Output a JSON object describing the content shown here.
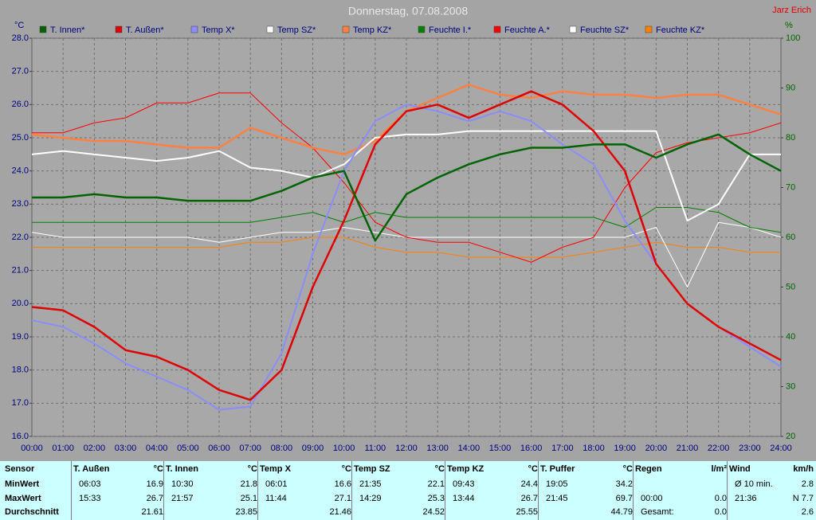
{
  "chart_data": {
    "type": "line",
    "title": "Donnerstag, 07.08.2008",
    "author": "Jarz Erich",
    "y_label": "°C",
    "y2_label": "%",
    "categories": [
      "00:00",
      "01:00",
      "02:00",
      "03:00",
      "04:00",
      "05:00",
      "06:00",
      "07:00",
      "08:00",
      "09:00",
      "10:00",
      "11:00",
      "12:00",
      "13:00",
      "14:00",
      "15:00",
      "16:00",
      "17:00",
      "18:00",
      "19:00",
      "20:00",
      "21:00",
      "22:00",
      "23:00",
      "24:00"
    ],
    "ylim": [
      16,
      28
    ],
    "yticks": [
      {
        "value": 16,
        "label": "16.0"
      },
      {
        "value": 17,
        "label": "17.0"
      },
      {
        "value": 18,
        "label": "18.0"
      },
      {
        "value": 19,
        "label": "19.0"
      },
      {
        "value": 20,
        "label": "20.0"
      },
      {
        "value": 21,
        "label": "21.0"
      },
      {
        "value": 22,
        "label": "22.0"
      },
      {
        "value": 23,
        "label": "23.0"
      },
      {
        "value": 24,
        "label": "24.0"
      },
      {
        "value": 25,
        "label": "25.0"
      },
      {
        "value": 26,
        "label": "26.0"
      },
      {
        "value": 27,
        "label": "27.0"
      },
      {
        "value": 28,
        "label": "28.0"
      }
    ],
    "y2lim": [
      20,
      100
    ],
    "y2ticks": [
      20,
      30,
      40,
      50,
      60,
      70,
      80,
      90,
      100
    ],
    "grid": true,
    "series": [
      {
        "name": "T. Innen*",
        "color": "#006400",
        "line_width": 2.5,
        "values": [
          23.2,
          23.2,
          23.3,
          23.2,
          23.2,
          23.1,
          23.1,
          23.1,
          23.4,
          23.8,
          24.0,
          21.9,
          23.3,
          23.8,
          24.2,
          24.5,
          24.7,
          24.7,
          24.8,
          24.8,
          24.4,
          24.8,
          25.1,
          24.5,
          24.0
        ]
      },
      {
        "name": "T. Außen*",
        "color": "#e00000",
        "line_width": 2.5,
        "values": [
          19.9,
          19.8,
          19.3,
          18.6,
          18.4,
          18.0,
          17.4,
          17.1,
          18.0,
          20.5,
          22.5,
          24.8,
          25.8,
          26.0,
          25.6,
          26.0,
          26.4,
          26.0,
          25.2,
          24.0,
          21.2,
          20.0,
          19.3,
          18.8,
          18.3
        ]
      },
      {
        "name": "Temp X*",
        "color": "#8c8cff",
        "line_width": 2,
        "values": [
          19.5,
          19.3,
          18.8,
          18.2,
          17.8,
          17.4,
          16.8,
          16.9,
          18.5,
          21.5,
          24.0,
          25.5,
          26.0,
          25.8,
          25.5,
          25.8,
          25.5,
          24.8,
          24.2,
          22.5,
          21.2,
          20.0,
          19.3,
          18.7,
          18.1
        ]
      },
      {
        "name": "Temp SZ*",
        "color": "#ffffff",
        "line_width": 2,
        "values": [
          24.5,
          24.6,
          24.5,
          24.4,
          24.3,
          24.4,
          24.6,
          24.1,
          24.0,
          23.8,
          24.2,
          25.0,
          25.1,
          25.1,
          25.2,
          25.2,
          25.2,
          25.2,
          25.2,
          25.2,
          25.2,
          22.5,
          23.0,
          24.5,
          24.5
        ]
      },
      {
        "name": "Temp KZ*",
        "color": "#ff8040",
        "line_width": 2.5,
        "values": [
          25.1,
          25.0,
          24.9,
          24.9,
          24.8,
          24.7,
          24.7,
          25.3,
          25.0,
          24.7,
          24.5,
          24.9,
          25.8,
          26.2,
          26.6,
          26.3,
          26.2,
          26.4,
          26.3,
          26.3,
          26.2,
          26.3,
          26.3,
          26.0,
          25.7
        ]
      },
      {
        "name": "Feuchte I.*",
        "color": "#008000",
        "line_width": 1,
        "axis": "y2",
        "values": [
          63,
          63,
          63,
          63,
          63,
          63,
          63,
          63,
          64,
          65,
          63,
          65,
          64,
          64,
          64,
          64,
          64,
          64,
          64,
          62,
          66,
          66,
          65,
          62,
          61
        ]
      },
      {
        "name": "Feuchte A.*",
        "color": "#ff0000",
        "line_width": 1,
        "axis": "y2",
        "values": [
          81,
          81,
          83,
          84,
          87,
          87,
          89,
          89,
          83,
          78,
          71,
          63,
          60,
          59,
          59,
          57,
          55,
          58,
          60,
          70,
          77,
          79,
          80,
          81,
          83
        ]
      },
      {
        "name": "Feuchte SZ*",
        "color": "#ffffff",
        "line_width": 1,
        "axis": "y2",
        "values": [
          61,
          60,
          60,
          60,
          60,
          60,
          59,
          60,
          61,
          61,
          62,
          61,
          60,
          60,
          60,
          60,
          60,
          60,
          60,
          60,
          62,
          50,
          63,
          62,
          60
        ]
      },
      {
        "name": "Feuchte KZ*",
        "color": "#ff8000",
        "line_width": 1,
        "axis": "y2",
        "values": [
          58,
          58,
          58,
          58,
          58,
          58,
          58,
          59,
          59,
          60,
          60,
          58,
          57,
          57,
          56,
          56,
          56,
          56,
          57,
          58,
          59,
          58,
          58,
          57,
          57
        ]
      }
    ]
  },
  "table": {
    "row_labels": [
      "Sensor",
      "MinWert",
      "MaxWert",
      "Durchschnitt"
    ],
    "groups": [
      {
        "name": "T. Außen",
        "unit": "°C",
        "rows": [
          [
            "06:03",
            "16.9"
          ],
          [
            "15:33",
            "26.7"
          ],
          [
            "21.61"
          ]
        ]
      },
      {
        "name": "T. Innen",
        "unit": "°C",
        "rows": [
          [
            "10:30",
            "21.8"
          ],
          [
            "21:57",
            "25.1"
          ],
          [
            "23.85"
          ]
        ]
      },
      {
        "name": "Temp X",
        "unit": "°C",
        "rows": [
          [
            "06:01",
            "16.6"
          ],
          [
            "11:44",
            "27.1"
          ],
          [
            "21.46"
          ]
        ]
      },
      {
        "name": "Temp SZ",
        "unit": "°C",
        "rows": [
          [
            "21:35",
            "22.1"
          ],
          [
            "14:29",
            "25.3"
          ],
          [
            "24.52"
          ]
        ]
      },
      {
        "name": "Temp KZ",
        "unit": "°C",
        "rows": [
          [
            "09:43",
            "24.4"
          ],
          [
            "13:44",
            "26.7"
          ],
          [
            "25.55"
          ]
        ]
      },
      {
        "name": "T. Puffer",
        "unit": "°C",
        "rows": [
          [
            "19:05",
            "34.2"
          ],
          [
            "21:45",
            "69.7"
          ],
          [
            "44.79"
          ]
        ]
      },
      {
        "name": "Regen",
        "unit": "l/m²",
        "rows": [
          [],
          [
            "00:00",
            "0.0"
          ],
          [
            "Gesamt:",
            "0.0"
          ]
        ]
      },
      {
        "name": "Wind",
        "unit": "km/h",
        "rows": [
          [
            "Ø 10 min.",
            "2.8"
          ],
          [
            "21:36",
            "N 7.7"
          ],
          [
            "2.6"
          ]
        ]
      }
    ]
  }
}
